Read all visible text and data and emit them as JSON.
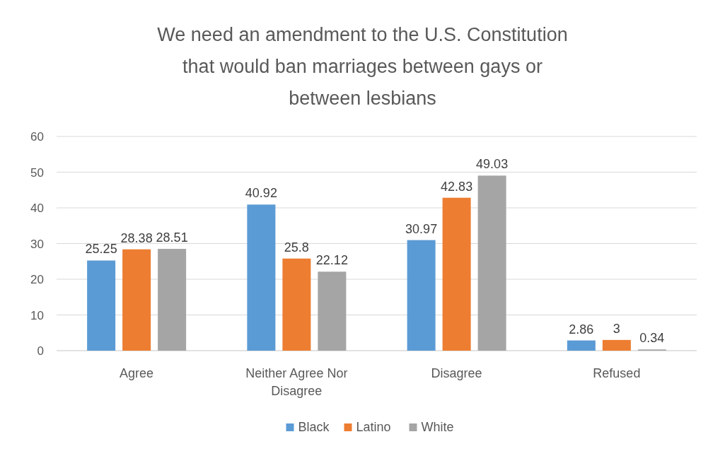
{
  "chart_data": {
    "type": "bar",
    "title": "We need an amendment to the U.S. Constitution that would ban marriages between gays or between lesbians",
    "categories": [
      "Agree",
      "Neither Agree Nor Disagree",
      "Disagree",
      "Refused"
    ],
    "series": [
      {
        "name": "Black",
        "color": "#5b9bd5",
        "values": [
          25.25,
          40.92,
          30.97,
          2.86
        ]
      },
      {
        "name": "Latino",
        "color": "#ed7d31",
        "values": [
          28.38,
          25.8,
          42.83,
          3
        ]
      },
      {
        "name": "White",
        "color": "#a5a5a5",
        "values": [
          28.51,
          22.12,
          49.03,
          0.34
        ]
      }
    ],
    "ylim": [
      0,
      60
    ],
    "yticks": [
      0,
      10,
      20,
      30,
      40,
      50,
      60
    ],
    "grid": "y",
    "legend": "bottom",
    "data_labels": true
  }
}
